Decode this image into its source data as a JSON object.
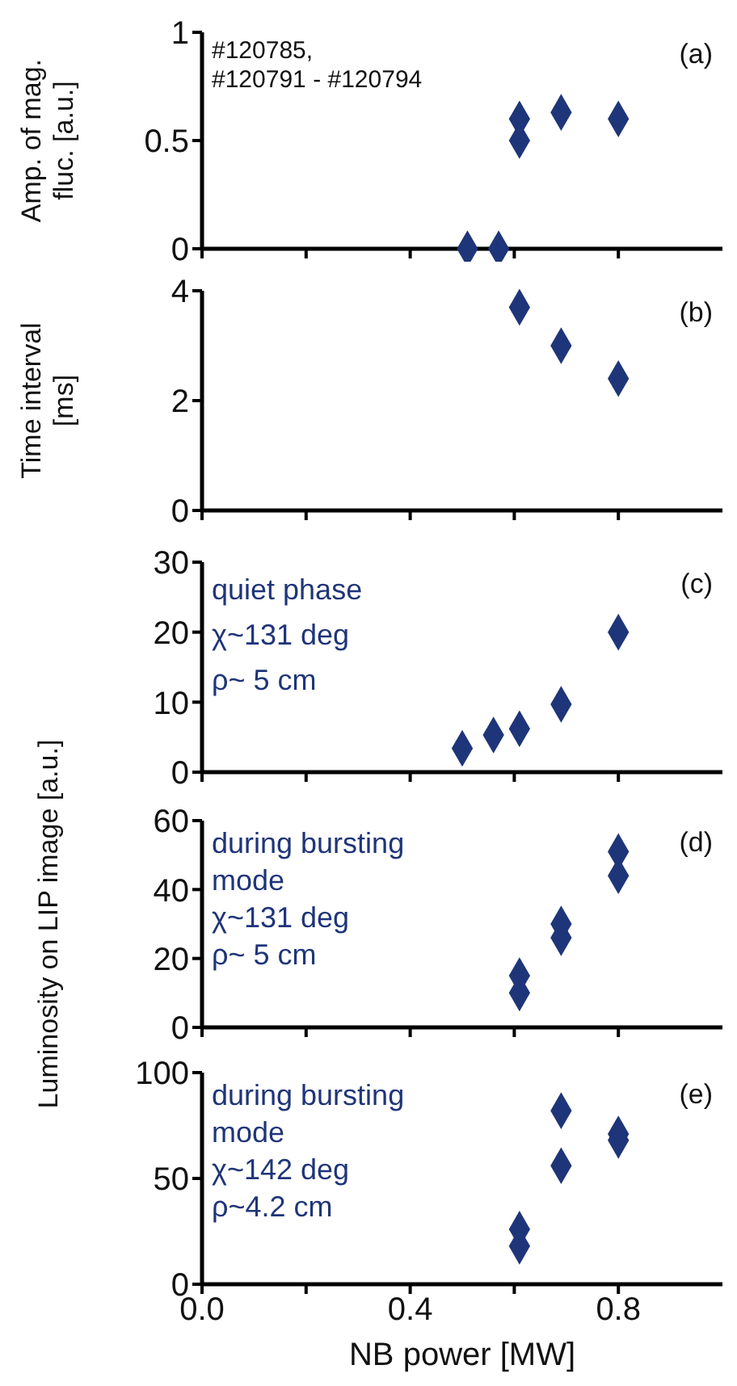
{
  "chart_data": [
    {
      "type": "scatter",
      "ylabel": "Amp. of mag. fluc. [a.u.]",
      "annotations": [
        "(a)",
        "#120785,",
        "#120791 - #120794"
      ],
      "x": [
        0.51,
        0.57,
        0.61,
        0.61,
        0.69,
        0.8
      ],
      "series": [
        {
          "color": "#1f3579",
          "values": [
            0,
            0,
            0.6,
            0.5,
            0.63,
            0.6
          ]
        }
      ],
      "xlim": [
        0,
        1
      ],
      "xticks": [
        {
          "value": 0,
          "label": null
        },
        {
          "value": 0.2,
          "label": null
        },
        {
          "value": 0.4,
          "label": null
        },
        {
          "value": 0.6,
          "label": null
        },
        {
          "value": 0.8,
          "label": null
        }
      ],
      "ylim": [
        0,
        1
      ],
      "yticks": [
        0,
        0.5,
        1
      ],
      "marker": "diamond",
      "tick_labels": "y"
    },
    {
      "type": "scatter",
      "ylabel": "Time interval [ms]",
      "annotations": [
        "(b)"
      ],
      "x": [
        0.61,
        0.69,
        0.8
      ],
      "series": [
        {
          "color": "#1f3579",
          "values": [
            3.7,
            3.0,
            2.4
          ]
        }
      ],
      "xlim": [
        0,
        1
      ],
      "xticks": [
        {
          "value": 0,
          "label": null
        },
        {
          "value": 0.2,
          "label": null
        },
        {
          "value": 0.4,
          "label": null
        },
        {
          "value": 0.6,
          "label": null
        },
        {
          "value": 0.8,
          "label": null
        }
      ],
      "ylim": [
        0,
        4
      ],
      "yticks": [
        0,
        2,
        4
      ],
      "marker": "diamond",
      "tick_labels": "y"
    },
    {
      "type": "scatter",
      "annotations": [
        "(c)",
        "quiet phase",
        "χ~131 deg",
        "ρ~ 5 cm"
      ],
      "x": [
        0.5,
        0.56,
        0.61,
        0.69,
        0.8
      ],
      "series": [
        {
          "color": "#1f3579",
          "values": [
            3.4,
            5.3,
            6.2,
            9.7,
            20
          ]
        }
      ],
      "xlim": [
        0,
        1
      ],
      "xticks": [
        {
          "value": 0,
          "label": null
        },
        {
          "value": 0.2,
          "label": null
        },
        {
          "value": 0.4,
          "label": null
        },
        {
          "value": 0.6,
          "label": null
        },
        {
          "value": 0.8,
          "label": null
        }
      ],
      "ylim": [
        0,
        30
      ],
      "yticks": [
        0,
        10,
        20,
        30
      ],
      "marker": "diamond",
      "tick_labels": "y"
    },
    {
      "type": "scatter",
      "ylabel": "Luminosity on LIP image [a.u.]",
      "annotations": [
        "(d)",
        "during bursting",
        "mode",
        "χ~131 deg",
        "ρ~ 5 cm"
      ],
      "x": [
        0.61,
        0.61,
        0.69,
        0.69,
        0.8,
        0.8
      ],
      "series": [
        {
          "color": "#1f3579",
          "values": [
            15,
            10,
            30,
            26,
            51,
            44
          ]
        }
      ],
      "xlim": [
        0,
        1
      ],
      "xticks": [
        {
          "value": 0,
          "label": null
        },
        {
          "value": 0.2,
          "label": null
        },
        {
          "value": 0.4,
          "label": null
        },
        {
          "value": 0.6,
          "label": null
        },
        {
          "value": 0.8,
          "label": null
        }
      ],
      "ylim": [
        0,
        60
      ],
      "yticks": [
        0,
        20,
        40,
        60
      ],
      "marker": "diamond",
      "tick_labels": "y"
    },
    {
      "type": "scatter",
      "xlabel": "NB power [MW]",
      "annotations": [
        "(e)",
        "during bursting",
        "mode",
        "χ~142 deg",
        "ρ~4.2 cm"
      ],
      "x": [
        0.61,
        0.61,
        0.69,
        0.69,
        0.8,
        0.8
      ],
      "series": [
        {
          "color": "#1f3579",
          "values": [
            26,
            18,
            82,
            56,
            71,
            68
          ]
        }
      ],
      "xlim": [
        0,
        1
      ],
      "xticks": [
        {
          "value": 0,
          "label": "0.0"
        },
        {
          "value": 0.2,
          "label": null
        },
        {
          "value": 0.4,
          "label": "0.4"
        },
        {
          "value": 0.6,
          "label": null
        },
        {
          "value": 0.8,
          "label": "0.8"
        }
      ],
      "ylim": [
        0,
        100
      ],
      "yticks": [
        0,
        50,
        100
      ],
      "marker": "diamond"
    }
  ]
}
